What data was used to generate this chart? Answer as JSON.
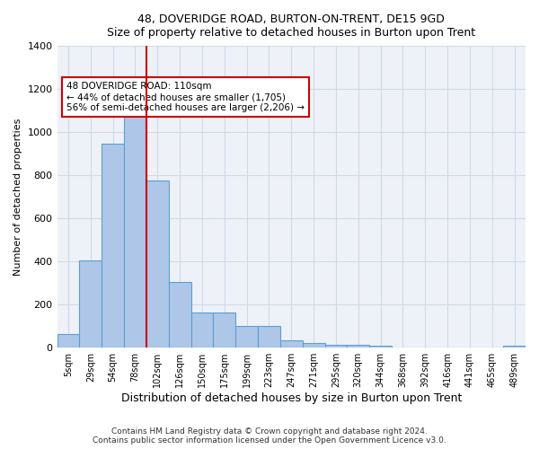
{
  "title1": "48, DOVERIDGE ROAD, BURTON-ON-TRENT, DE15 9GD",
  "title2": "Size of property relative to detached houses in Burton upon Trent",
  "xlabel": "Distribution of detached houses by size in Burton upon Trent",
  "ylabel": "Number of detached properties",
  "footer1": "Contains HM Land Registry data © Crown copyright and database right 2024.",
  "footer2": "Contains public sector information licensed under the Open Government Licence v3.0.",
  "bin_labels": [
    "5sqm",
    "29sqm",
    "54sqm",
    "78sqm",
    "102sqm",
    "126sqm",
    "150sqm",
    "175sqm",
    "199sqm",
    "223sqm",
    "247sqm",
    "271sqm",
    "295sqm",
    "320sqm",
    "344sqm",
    "368sqm",
    "392sqm",
    "416sqm",
    "441sqm",
    "465sqm",
    "489sqm"
  ],
  "bar_values": [
    65,
    405,
    945,
    1100,
    775,
    305,
    165,
    165,
    100,
    100,
    35,
    20,
    15,
    15,
    8,
    0,
    0,
    0,
    0,
    0,
    8
  ],
  "bar_color": "#aec6e8",
  "bar_edge_color": "#5a9fd4",
  "grid_color": "#d0d8e8",
  "bg_color": "#eef2f8",
  "vline_color": "#cc0000",
  "vline_pos": 3.5,
  "annotation_text": "48 DOVERIDGE ROAD: 110sqm\n← 44% of detached houses are smaller (1,705)\n56% of semi-detached houses are larger (2,206) →",
  "annotation_box_color": "#cc0000",
  "ylim": [
    0,
    1400
  ],
  "yticks": [
    0,
    200,
    400,
    600,
    800,
    1000,
    1200,
    1400
  ]
}
